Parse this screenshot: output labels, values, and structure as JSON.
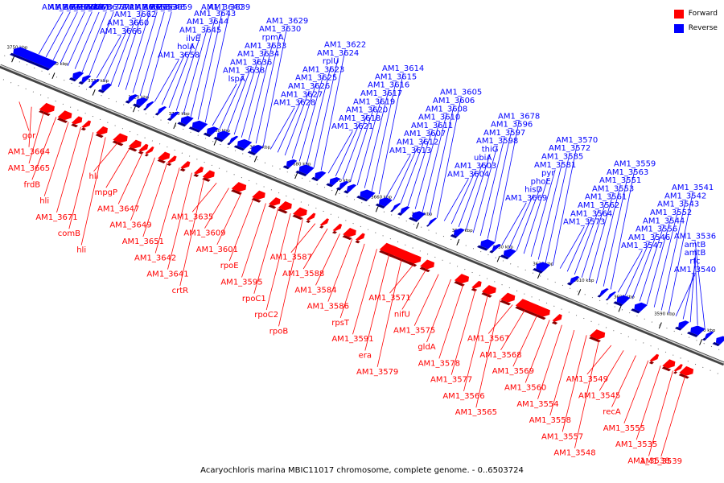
{
  "caption": "Acaryochloris marina MBIC11017 chromosome, complete genome. - 0..6503724",
  "legend": [
    {
      "label": "Forward",
      "color": "#ff0000"
    },
    {
      "label": "Reverse",
      "color": "#0000ff"
    }
  ],
  "colors": {
    "forward": "#ff0000",
    "reverse": "#0000ff",
    "axis": "#888888"
  },
  "ticks": [
    "3750 kbp",
    "3740 kbp",
    "3730 kbp",
    "3720 kbp",
    "3710 kbp",
    "3700 kbp",
    "3690 kbp",
    "3680 kbp",
    "3670 kbp",
    "3660 kbp",
    "3650 kbp",
    "3640 kbp",
    "3630 kbp",
    "3620 kbp",
    "3610 kbp",
    "3600 kbp",
    "3590 kbp",
    "3580 kbp"
  ],
  "reverse_labels": [
    "AM1_3691",
    "AM1_3684",
    "AM1_3682",
    "AM1_3675",
    "AM1_3670",
    "chlM",
    "AM1_3673",
    "AM1_3672",
    "AM1_3666",
    "AM1_3660",
    "AM1_3662",
    "AM1_3661",
    "AM1_3656",
    "AM1_3653",
    "AM1_3648",
    "AM1_3659",
    "AM1_3658",
    "holA",
    "ilvE",
    "AM1_3645",
    "AM1_3644",
    "AM1_3643",
    "AM1_3640",
    "AM1_3639",
    "lspA",
    "AM1_3638",
    "AM1_3636",
    "AM1_3634",
    "AM1_3633",
    "rpmA",
    "AM1_3630",
    "AM1_3629",
    "AM1_3628",
    "AM1_3627",
    "AM1_3626",
    "AM1_3625",
    "AM1_3623",
    "rplU",
    "AM1_3624",
    "AM1_3622",
    "AM1_3621",
    "AM1_3618",
    "AM1_3620",
    "AM1_3619",
    "AM1_3617",
    "AM1_3616",
    "AM1_3615",
    "AM1_3614",
    "AM1_3613",
    "AM1_3612",
    "AM1_3607",
    "AM1_3611",
    "AM1_3610",
    "AM1_3608",
    "AM1_3606",
    "AM1_3605",
    "AM1_3604",
    "AM1_3603",
    "ubiA",
    "thiG",
    "AM1_3598",
    "AM1_3597",
    "AM1_3596",
    "AM1_3678",
    "AM1_3669",
    "hisD",
    "phoE",
    "pyr",
    "AM1_3581",
    "AM1_3585",
    "AM1_3572",
    "AM1_3570",
    "AM1_3573",
    "AM1_3564",
    "AM1_3562",
    "AM1_3561",
    "AM1_3553",
    "AM1_3551",
    "AM1_3563",
    "AM1_3559",
    "AM1_3547",
    "AM1_3546",
    "AM1_3556",
    "AM1_3544",
    "AM1_3552",
    "AM1_3543",
    "AM1_3542",
    "AM1_3541",
    "AM1_3540",
    "rfc",
    "amtB",
    "amtB",
    "AM1_3536"
  ],
  "forward_labels": [
    "gor",
    "AM1_3664",
    "AM1_3665",
    "frdB",
    "hli",
    "AM1_3671",
    "comB",
    "hli",
    "hli",
    "mpgP",
    "AM1_3647",
    "AM1_3649",
    "AM1_3651",
    "AM1_3642",
    "AM1_3641",
    "crtR",
    "AM1_3635",
    "AM1_3609",
    "AM1_3601",
    "rpoE",
    "AM1_3595",
    "rpoC1",
    "rpoC2",
    "rpoB",
    "AM1_3587",
    "AM1_3588",
    "AM1_3584",
    "AM1_3586",
    "rpsT",
    "AM1_3591",
    "era",
    "AM1_3579",
    "AM1_3571",
    "nifU",
    "AM1_3575",
    "gldA",
    "AM1_3578",
    "AM1_3577",
    "AM1_3566",
    "AM1_3565",
    "AM1_3567",
    "AM1_3568",
    "AM1_3569",
    "AM1_3560",
    "AM1_3554",
    "AM1_3558",
    "AM1_3557",
    "AM1_3548",
    "AM1_3549",
    "AM1_3545",
    "recA",
    "AM1_3555",
    "AM1_3535",
    "AM1_3538",
    "AM1_3539"
  ]
}
